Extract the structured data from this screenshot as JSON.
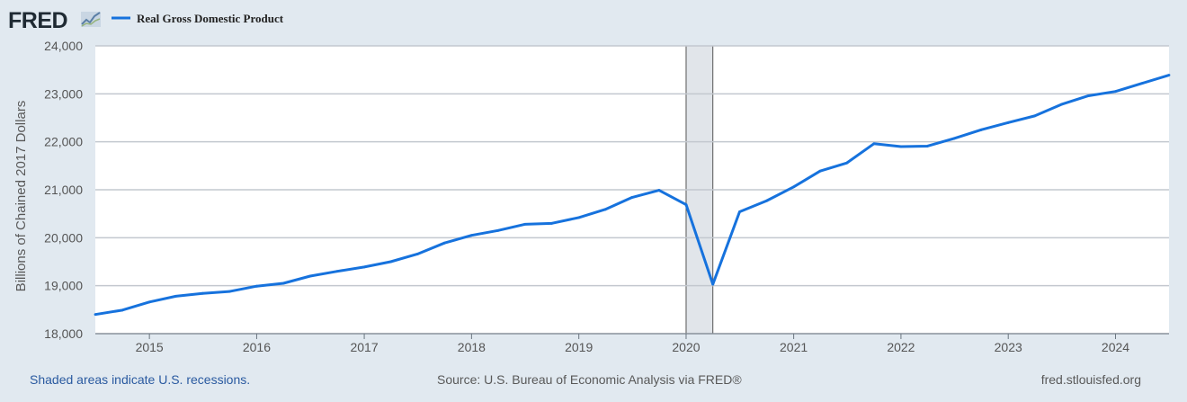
{
  "header": {
    "logo_text": "FRED",
    "logo_icon": "line-chart-icon",
    "legend_label": "Real Gross Domestic Product"
  },
  "footer": {
    "recession_note": "Shaded areas indicate U.S. recessions.",
    "source": "Source: U.S. Bureau of Economic Analysis via FRED®",
    "site": "fred.stlouisfed.org"
  },
  "colors": {
    "line": "#1672dd",
    "background": "#e1e9f0",
    "plot_background": "#ffffff",
    "recession_shade": "#e1e5ea",
    "gridline": "#c3c8cf"
  },
  "chart_data": {
    "type": "line",
    "title": "",
    "xlabel": "",
    "ylabel": "Billions of Chained 2017 Dollars",
    "ylim": [
      18000,
      24000
    ],
    "xlim": [
      "2014-07-01",
      "2024-07-01"
    ],
    "yticks": [
      "18,000",
      "19,000",
      "20,000",
      "21,000",
      "22,000",
      "23,000",
      "24,000"
    ],
    "ytick_values": [
      18000,
      19000,
      20000,
      21000,
      22000,
      23000,
      24000
    ],
    "xticks": [
      "2015",
      "2016",
      "2017",
      "2018",
      "2019",
      "2020",
      "2021",
      "2022",
      "2023",
      "2024"
    ],
    "xtick_dates": [
      "2015-01-01",
      "2016-01-01",
      "2017-01-01",
      "2018-01-01",
      "2019-01-01",
      "2020-01-01",
      "2021-01-01",
      "2022-01-01",
      "2023-01-01",
      "2024-01-01"
    ],
    "grid": true,
    "recessions": [
      [
        "2020-01-01",
        "2020-04-01"
      ]
    ],
    "series": [
      {
        "name": "Real Gross Domestic Product",
        "x": [
          "2014-07-01",
          "2014-10-01",
          "2015-01-01",
          "2015-04-01",
          "2015-07-01",
          "2015-10-01",
          "2016-01-01",
          "2016-04-01",
          "2016-07-01",
          "2016-10-01",
          "2017-01-01",
          "2017-04-01",
          "2017-07-01",
          "2017-10-01",
          "2018-01-01",
          "2018-04-01",
          "2018-07-01",
          "2018-10-01",
          "2019-01-01",
          "2019-04-01",
          "2019-07-01",
          "2019-10-01",
          "2020-01-01",
          "2020-04-01",
          "2020-07-01",
          "2020-10-01",
          "2021-01-01",
          "2021-04-01",
          "2021-07-01",
          "2021-10-01",
          "2022-01-01",
          "2022-04-01",
          "2022-07-01",
          "2022-10-01",
          "2023-01-01",
          "2023-04-01",
          "2023-07-01",
          "2023-10-01",
          "2024-01-01",
          "2024-04-01",
          "2024-07-01"
        ],
        "values": [
          18400,
          18490,
          18660,
          18780,
          18840,
          18880,
          18990,
          19050,
          19200,
          19300,
          19390,
          19500,
          19660,
          19890,
          20050,
          20150,
          20280,
          20300,
          20420,
          20590,
          20840,
          20990,
          20690,
          19030,
          20540,
          20770,
          21060,
          21390,
          21560,
          21960,
          21900,
          21910,
          22070,
          22250,
          22400,
          22540,
          22780,
          22960,
          23050,
          23220,
          23390
        ]
      }
    ]
  }
}
